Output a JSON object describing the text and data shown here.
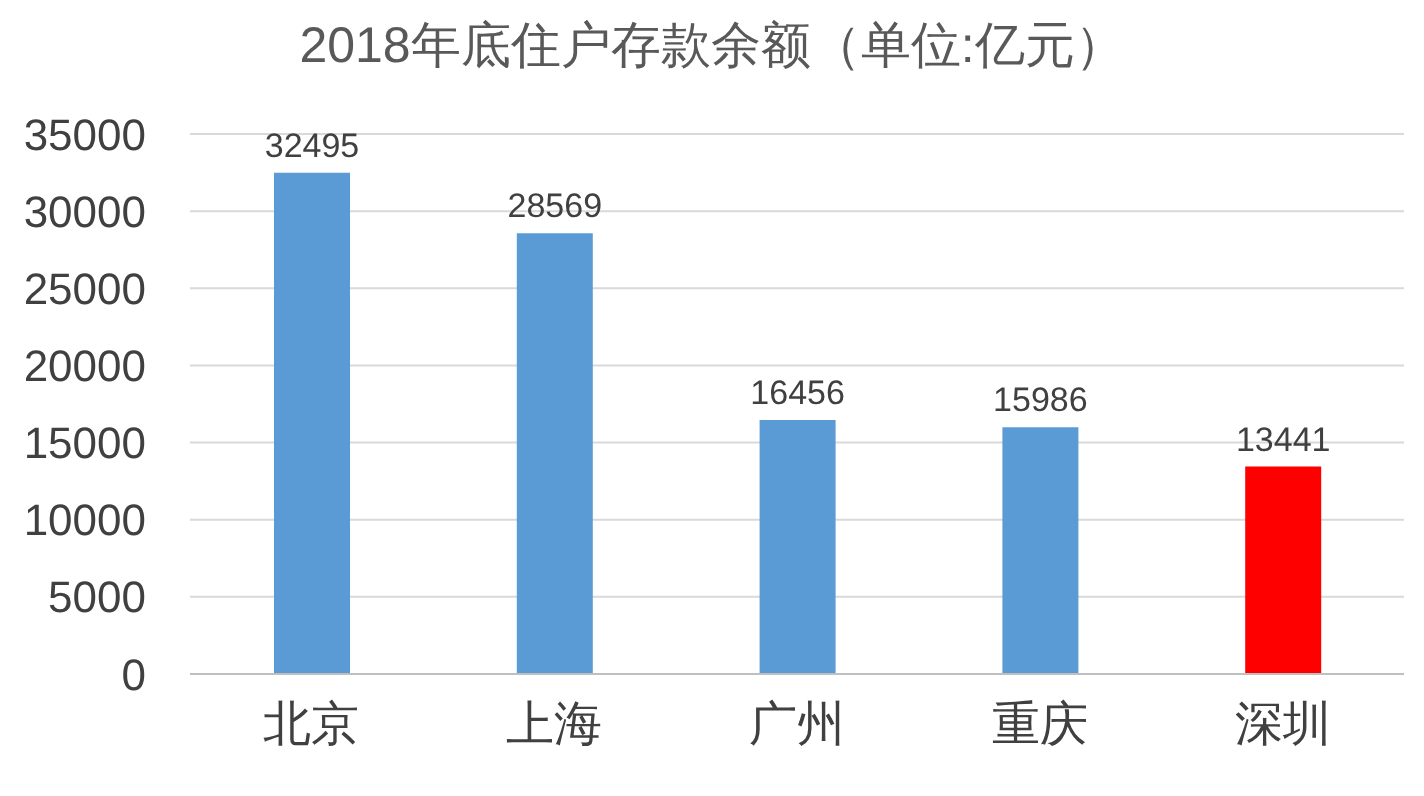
{
  "chart_data": {
    "type": "bar",
    "title": "2018年底住户存款余额（单位:亿元）",
    "categories": [
      "北京",
      "上海",
      "广州",
      "重庆",
      "深圳"
    ],
    "values": [
      32495,
      28569,
      16456,
      15986,
      13441
    ],
    "colors": [
      "#5b9bd5",
      "#5b9bd5",
      "#5b9bd5",
      "#5b9bd5",
      "#ff0000"
    ],
    "ylim": [
      0,
      35000
    ],
    "yticks": [
      0,
      5000,
      10000,
      15000,
      20000,
      25000,
      30000,
      35000
    ],
    "grid": "y",
    "data_labels": true
  }
}
